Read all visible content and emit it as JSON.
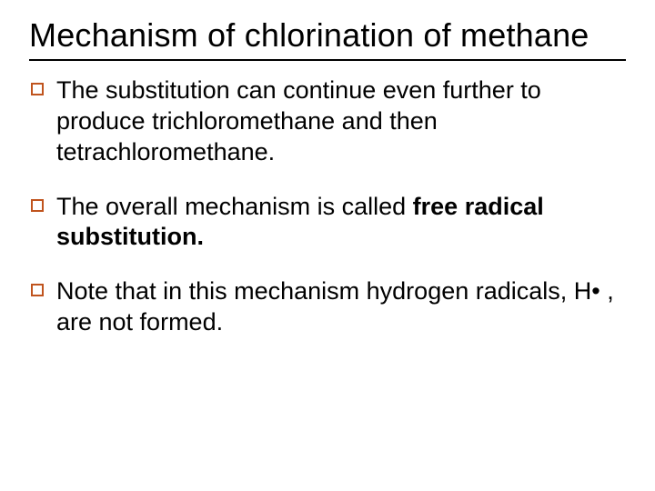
{
  "slide": {
    "title": "Mechanism of chlorination of methane",
    "title_fontsize": 36,
    "title_color": "#000000",
    "rule_color": "#000000",
    "background_color": "#ffffff",
    "body_fontsize": 27,
    "bullet": {
      "size": 14,
      "border_width": 2,
      "border_color": "#c0541e",
      "fill_color": "#ffffff"
    },
    "items": [
      {
        "prefix": "The substitution can continue even further to produce trichloromethane and then tetrachloromethane.",
        "bold": "",
        "suffix": ""
      },
      {
        "prefix": "The overall mechanism is called ",
        "bold": "free radical substitution.",
        "suffix": ""
      },
      {
        "prefix": "Note that in this mechanism hydrogen radicals, H• , are not formed.",
        "bold": "",
        "suffix": ""
      }
    ]
  }
}
